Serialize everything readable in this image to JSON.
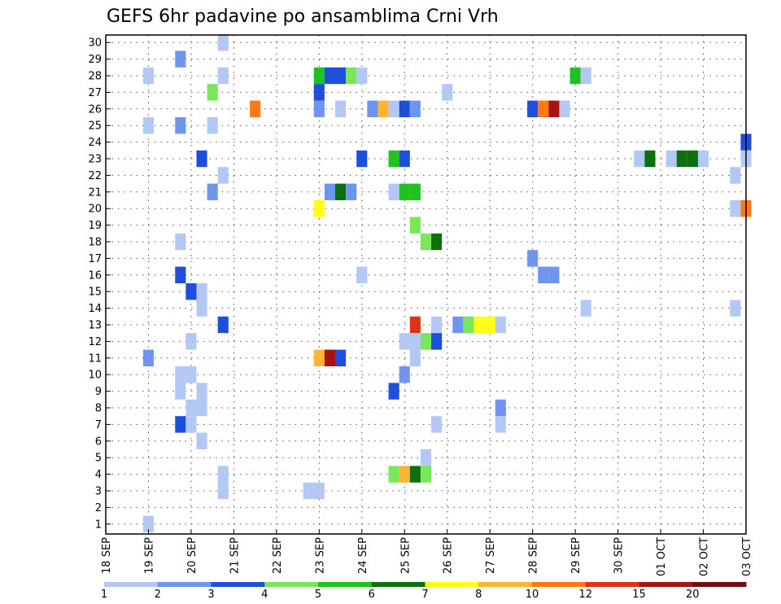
{
  "chart_data": {
    "type": "heatmap",
    "title": "GEFS 6hr padavine po ansamblima Crni Vrh",
    "xlabel": "",
    "ylabel": "",
    "x_tick_labels": [
      "18 SEP",
      "19 SEP",
      "20 SEP",
      "21 SEP",
      "22 SEP",
      "23 SEP",
      "24 SEP",
      "25 SEP",
      "26 SEP",
      "27 SEP",
      "28 SEP",
      "29 SEP",
      "30 SEP",
      "01 OCT",
      "02 OCT",
      "03 OCT"
    ],
    "y_tick_labels": [
      "1",
      "2",
      "3",
      "4",
      "5",
      "6",
      "7",
      "8",
      "9",
      "10",
      "11",
      "12",
      "13",
      "14",
      "15",
      "16",
      "17",
      "18",
      "19",
      "20",
      "21",
      "22",
      "23",
      "24",
      "25",
      "26",
      "27",
      "28",
      "29",
      "30"
    ],
    "xlim": [
      0,
      15
    ],
    "ylim": [
      0,
      30
    ],
    "x_step": 0.25,
    "grid": true,
    "colorbar": {
      "boundaries": [
        "1",
        "2",
        "3",
        "4",
        "5",
        "6",
        "7",
        "8",
        "10",
        "12",
        "15",
        "20"
      ],
      "colors": [
        "#b4c8f5",
        "#6e96ee",
        "#1e4fdc",
        "#78e85a",
        "#1fc31f",
        "#0d700d",
        "#ffff14",
        "#ffb432",
        "#ff7814",
        "#e13214",
        "#a51414",
        "#6e0f0f"
      ]
    },
    "cells": [
      [
        30,
        2.75,
        "#b4c8f5"
      ],
      [
        29,
        1.75,
        "#6e96ee"
      ],
      [
        28,
        1.0,
        "#b4c8f5"
      ],
      [
        28,
        2.75,
        "#b4c8f5"
      ],
      [
        28,
        5.0,
        "#1fc31f"
      ],
      [
        28,
        5.25,
        "#1e4fdc"
      ],
      [
        28,
        5.5,
        "#1e4fdc"
      ],
      [
        28,
        5.75,
        "#78e85a"
      ],
      [
        28,
        6.0,
        "#b4c8f5"
      ],
      [
        28,
        11.0,
        "#1fc31f"
      ],
      [
        28,
        11.25,
        "#b4c8f5"
      ],
      [
        27,
        2.5,
        "#78e85a"
      ],
      [
        27,
        5.0,
        "#1e4fdc"
      ],
      [
        27,
        8.0,
        "#b4c8f5"
      ],
      [
        26,
        3.5,
        "#ff7814"
      ],
      [
        26,
        5.0,
        "#6e96ee"
      ],
      [
        26,
        5.5,
        "#b4c8f5"
      ],
      [
        26,
        6.25,
        "#6e96ee"
      ],
      [
        26,
        6.5,
        "#ffb432"
      ],
      [
        26,
        6.75,
        "#b4c8f5"
      ],
      [
        26,
        7.0,
        "#1e4fdc"
      ],
      [
        26,
        7.25,
        "#6e96ee"
      ],
      [
        26,
        10.0,
        "#1e4fdc"
      ],
      [
        26,
        10.25,
        "#ff7814"
      ],
      [
        26,
        10.5,
        "#a51414"
      ],
      [
        26,
        10.75,
        "#b4c8f5"
      ],
      [
        25,
        1.0,
        "#b4c8f5"
      ],
      [
        25,
        1.75,
        "#6e96ee"
      ],
      [
        25,
        2.5,
        "#b4c8f5"
      ],
      [
        24,
        15.0,
        "#1e4fdc"
      ],
      [
        23,
        2.25,
        "#1e4fdc"
      ],
      [
        23,
        6.0,
        "#1e4fdc"
      ],
      [
        23,
        6.75,
        "#1fc31f"
      ],
      [
        23,
        7.0,
        "#1e4fdc"
      ],
      [
        23,
        12.5,
        "#b4c8f5"
      ],
      [
        23,
        12.75,
        "#0d700d"
      ],
      [
        23,
        13.25,
        "#b4c8f5"
      ],
      [
        23,
        13.5,
        "#0d700d"
      ],
      [
        23,
        13.75,
        "#0d700d"
      ],
      [
        23,
        14.0,
        "#b4c8f5"
      ],
      [
        23,
        15.0,
        "#b4c8f5"
      ],
      [
        22,
        2.75,
        "#b4c8f5"
      ],
      [
        22,
        14.75,
        "#b4c8f5"
      ],
      [
        21,
        2.5,
        "#6e96ee"
      ],
      [
        21,
        5.25,
        "#6e96ee"
      ],
      [
        21,
        5.5,
        "#0d700d"
      ],
      [
        21,
        5.75,
        "#6e96ee"
      ],
      [
        21,
        6.75,
        "#b4c8f5"
      ],
      [
        21,
        7.0,
        "#1fc31f"
      ],
      [
        21,
        7.25,
        "#1fc31f"
      ],
      [
        20,
        5.0,
        "#ffff14"
      ],
      [
        20,
        14.75,
        "#b4c8f5"
      ],
      [
        20,
        15.0,
        "#ff7814"
      ],
      [
        19,
        7.25,
        "#78e85a"
      ],
      [
        18,
        1.75,
        "#b4c8f5"
      ],
      [
        18,
        7.5,
        "#78e85a"
      ],
      [
        18,
        7.75,
        "#0d700d"
      ],
      [
        17,
        10.0,
        "#6e96ee"
      ],
      [
        16,
        1.75,
        "#1e4fdc"
      ],
      [
        16,
        6.0,
        "#b4c8f5"
      ],
      [
        16,
        10.25,
        "#6e96ee"
      ],
      [
        16,
        10.5,
        "#6e96ee"
      ],
      [
        15,
        2.0,
        "#1e4fdc"
      ],
      [
        15,
        2.25,
        "#b4c8f5"
      ],
      [
        14,
        2.25,
        "#b4c8f5"
      ],
      [
        14,
        11.25,
        "#b4c8f5"
      ],
      [
        14,
        14.75,
        "#b4c8f5"
      ],
      [
        13,
        2.75,
        "#1e4fdc"
      ],
      [
        13,
        7.25,
        "#e13214"
      ],
      [
        13,
        7.75,
        "#b4c8f5"
      ],
      [
        13,
        8.25,
        "#6e96ee"
      ],
      [
        13,
        8.5,
        "#78e85a"
      ],
      [
        13,
        8.75,
        "#ffff14"
      ],
      [
        13,
        9.0,
        "#ffff14"
      ],
      [
        13,
        9.25,
        "#b4c8f5"
      ],
      [
        12,
        2.0,
        "#b4c8f5"
      ],
      [
        12,
        7.0,
        "#b4c8f5"
      ],
      [
        12,
        7.25,
        "#b4c8f5"
      ],
      [
        12,
        7.5,
        "#78e85a"
      ],
      [
        12,
        7.75,
        "#1e4fdc"
      ],
      [
        11,
        1.0,
        "#6e96ee"
      ],
      [
        11,
        5.0,
        "#ffb432"
      ],
      [
        11,
        5.25,
        "#a51414"
      ],
      [
        11,
        5.5,
        "#1e4fdc"
      ],
      [
        11,
        7.25,
        "#b4c8f5"
      ],
      [
        10,
        1.75,
        "#b4c8f5"
      ],
      [
        10,
        2.0,
        "#b4c8f5"
      ],
      [
        10,
        7.0,
        "#6e96ee"
      ],
      [
        9,
        1.75,
        "#b4c8f5"
      ],
      [
        9,
        2.25,
        "#b4c8f5"
      ],
      [
        9,
        6.75,
        "#1e4fdc"
      ],
      [
        8,
        2.0,
        "#b4c8f5"
      ],
      [
        8,
        2.25,
        "#b4c8f5"
      ],
      [
        8,
        9.25,
        "#6e96ee"
      ],
      [
        7,
        1.75,
        "#1e4fdc"
      ],
      [
        7,
        2.0,
        "#b4c8f5"
      ],
      [
        7,
        7.75,
        "#b4c8f5"
      ],
      [
        7,
        9.25,
        "#b4c8f5"
      ],
      [
        6,
        2.25,
        "#b4c8f5"
      ],
      [
        5,
        7.5,
        "#b4c8f5"
      ],
      [
        4,
        2.75,
        "#b4c8f5"
      ],
      [
        4,
        6.75,
        "#78e85a"
      ],
      [
        4,
        7.0,
        "#ffb432"
      ],
      [
        4,
        7.25,
        "#0d700d"
      ],
      [
        4,
        7.5,
        "#78e85a"
      ],
      [
        3,
        2.75,
        "#b4c8f5"
      ],
      [
        3,
        4.75,
        "#b4c8f5"
      ],
      [
        3,
        5.0,
        "#b4c8f5"
      ],
      [
        1,
        1.0,
        "#b4c8f5"
      ]
    ]
  }
}
